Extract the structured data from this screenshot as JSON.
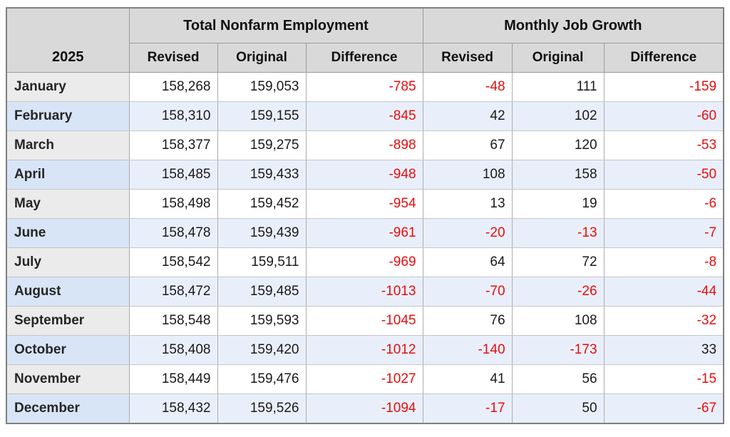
{
  "colors": {
    "negative_value": "#e60d0d",
    "header_bg": "#d9d9d9",
    "plain_row_month_bg": "#ebebeb",
    "alt_row_month_bg": "#d8e5f6",
    "alt_row_value_bg": "#e9effa",
    "plain_row_value_bg": "#ffffff"
  },
  "chart_data": {
    "type": "table",
    "year_header": "2025",
    "column_groups": [
      {
        "label": "Total Nonfarm Employment",
        "columns": [
          "Revised",
          "Original",
          "Difference"
        ]
      },
      {
        "label": "Monthly Job Growth",
        "columns": [
          "Revised",
          "Original",
          "Difference"
        ]
      }
    ],
    "rows": [
      {
        "month": "January",
        "values": [
          "158,268",
          "159,053",
          "-785",
          "-48",
          "111",
          "-159"
        ]
      },
      {
        "month": "February",
        "values": [
          "158,310",
          "159,155",
          "-845",
          "42",
          "102",
          "-60"
        ]
      },
      {
        "month": "March",
        "values": [
          "158,377",
          "159,275",
          "-898",
          "67",
          "120",
          "-53"
        ]
      },
      {
        "month": "April",
        "values": [
          "158,485",
          "159,433",
          "-948",
          "108",
          "158",
          "-50"
        ]
      },
      {
        "month": "May",
        "values": [
          "158,498",
          "159,452",
          "-954",
          "13",
          "19",
          "-6"
        ]
      },
      {
        "month": "June",
        "values": [
          "158,478",
          "159,439",
          "-961",
          "-20",
          "-13",
          "-7"
        ]
      },
      {
        "month": "July",
        "values": [
          "158,542",
          "159,511",
          "-969",
          "64",
          "72",
          "-8"
        ]
      },
      {
        "month": "August",
        "values": [
          "158,472",
          "159,485",
          "-1013",
          "-70",
          "-26",
          "-44"
        ]
      },
      {
        "month": "September",
        "values": [
          "158,548",
          "159,593",
          "-1045",
          "76",
          "108",
          "-32"
        ]
      },
      {
        "month": "October",
        "values": [
          "158,408",
          "159,420",
          "-1012",
          "-140",
          "-173",
          "33"
        ]
      },
      {
        "month": "November",
        "values": [
          "158,449",
          "159,476",
          "-1027",
          "41",
          "56",
          "-15"
        ]
      },
      {
        "month": "December",
        "values": [
          "158,432",
          "159,526",
          "-1094",
          "-17",
          "50",
          "-67"
        ]
      }
    ]
  }
}
